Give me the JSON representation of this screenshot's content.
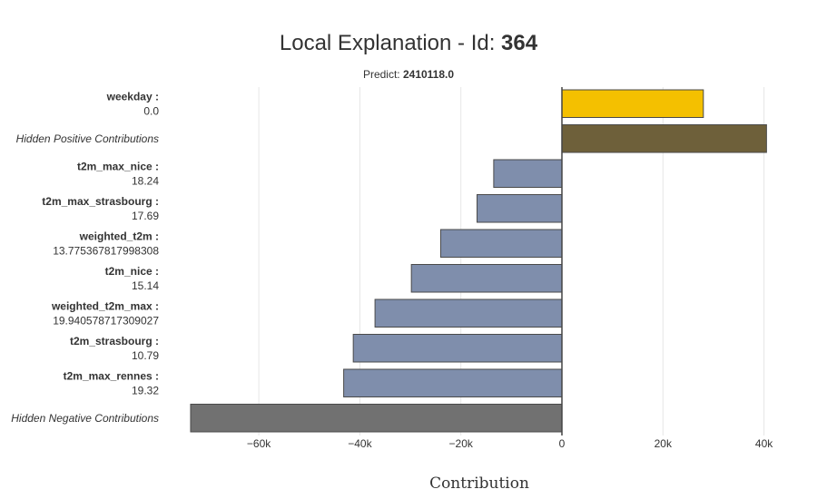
{
  "chart_data": {
    "type": "bar",
    "orientation": "horizontal",
    "title_prefix": "Local Explanation - Id: ",
    "title_id": "364",
    "subtitle_prefix": "Predict: ",
    "subtitle_value": "2410118.0",
    "xlabel": "Contribution",
    "xlim": [
      -75000,
      45000
    ],
    "xticks": [
      {
        "value": -60000,
        "label": "−60k"
      },
      {
        "value": -40000,
        "label": "−40k"
      },
      {
        "value": -20000,
        "label": "−20k"
      },
      {
        "value": 0,
        "label": "0"
      },
      {
        "value": 20000,
        "label": "20k"
      },
      {
        "value": 40000,
        "label": "40k"
      }
    ],
    "bars": [
      {
        "name": "weekday :",
        "value_text": "0.0",
        "contribution": 28000,
        "kind": "positive"
      },
      {
        "name": "Hidden Positive Contributions",
        "value_text": "",
        "contribution": 40500,
        "kind": "hidden-positive"
      },
      {
        "name": "t2m_max_nice :",
        "value_text": "18.24",
        "contribution": -13500,
        "kind": "negative"
      },
      {
        "name": "t2m_max_strasbourg :",
        "value_text": "17.69",
        "contribution": -16800,
        "kind": "negative"
      },
      {
        "name": "weighted_t2m :",
        "value_text": "13.775367817998308",
        "contribution": -24000,
        "kind": "negative"
      },
      {
        "name": "t2m_nice :",
        "value_text": "15.14",
        "contribution": -29800,
        "kind": "negative"
      },
      {
        "name": "weighted_t2m_max :",
        "value_text": "19.940578717309027",
        "contribution": -37000,
        "kind": "negative"
      },
      {
        "name": "t2m_strasbourg :",
        "value_text": "10.79",
        "contribution": -41300,
        "kind": "negative"
      },
      {
        "name": "t2m_max_rennes :",
        "value_text": "19.32",
        "contribution": -43200,
        "kind": "negative"
      },
      {
        "name": "Hidden Negative Contributions",
        "value_text": "",
        "contribution": -73500,
        "kind": "hidden-negative"
      }
    ],
    "colors": {
      "positive": "#f4c000",
      "hidden-positive": "#6e603a",
      "negative": "#7f8eac",
      "hidden-negative": "#717171",
      "border": "#4a4a4a"
    }
  }
}
